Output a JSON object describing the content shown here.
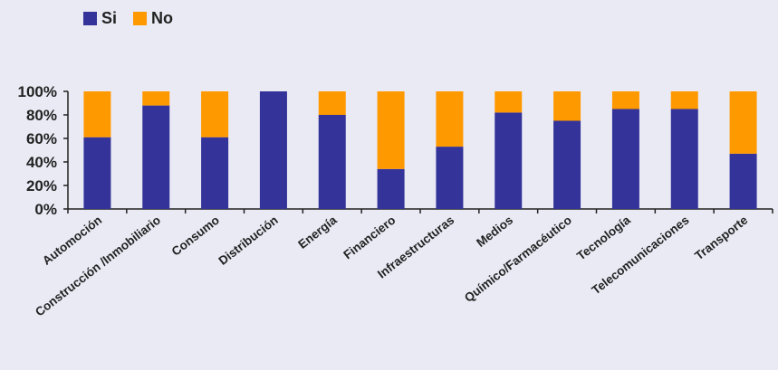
{
  "chart_data": {
    "type": "bar",
    "stacked": true,
    "percent": true,
    "categories": [
      "Automoción",
      "Construcción /Inmobiliario",
      "Consumo",
      "Distribución",
      "Energía",
      "Financiero",
      "Infraestructuras",
      "Medios",
      "Químico/Farmacéutico",
      "Tecnología",
      "Telecomunicaciones",
      "Transporte"
    ],
    "series": [
      {
        "name": "Si",
        "color": "#333399",
        "values": [
          61,
          88,
          61,
          100,
          80,
          34,
          53,
          82,
          75,
          85,
          85,
          47
        ]
      },
      {
        "name": "No",
        "color": "#ff9900",
        "values": [
          39,
          12,
          39,
          0,
          20,
          66,
          47,
          18,
          25,
          15,
          15,
          53
        ]
      }
    ],
    "yticks": [
      "0%",
      "20%",
      "40%",
      "60%",
      "80%",
      "100%"
    ],
    "ylim": [
      0,
      100
    ],
    "grid": false,
    "legend_position": "top-left",
    "title": "",
    "xlabel": "",
    "ylabel": ""
  }
}
